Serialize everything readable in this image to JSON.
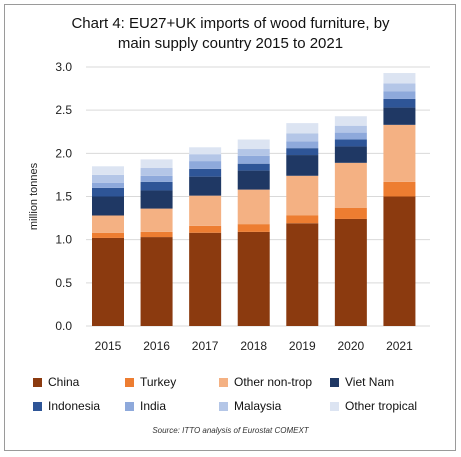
{
  "chart_data": {
    "type": "bar",
    "stacked": true,
    "title_lines": [
      "Chart 4: EU27+UK imports of wood furniture, by",
      "main supply country 2015 to 2021"
    ],
    "ylabel": "million tonnes",
    "xlabel": "",
    "ylim": [
      0,
      3.0
    ],
    "yticks": [
      "0.0",
      "0.5",
      "1.0",
      "1.5",
      "2.0",
      "2.5",
      "3.0"
    ],
    "categories": [
      "2015",
      "2016",
      "2017",
      "2018",
      "2019",
      "2020",
      "2021"
    ],
    "series": [
      {
        "name": "China",
        "color": "#8B3A0F",
        "values": [
          1.02,
          1.03,
          1.08,
          1.09,
          1.19,
          1.24,
          1.5
        ]
      },
      {
        "name": "Turkey",
        "color": "#ED7D31",
        "values": [
          0.06,
          0.06,
          0.08,
          0.09,
          0.09,
          0.13,
          0.17
        ]
      },
      {
        "name": "Other non-trop",
        "color": "#F4B183",
        "values": [
          0.2,
          0.27,
          0.35,
          0.4,
          0.46,
          0.52,
          0.66
        ]
      },
      {
        "name": "Viet Nam",
        "color": "#1F3864",
        "values": [
          0.22,
          0.21,
          0.22,
          0.22,
          0.24,
          0.19,
          0.2
        ]
      },
      {
        "name": "Indonesia",
        "color": "#2E5597",
        "values": [
          0.1,
          0.1,
          0.09,
          0.08,
          0.08,
          0.08,
          0.1
        ]
      },
      {
        "name": "India",
        "color": "#8EA9DB",
        "values": [
          0.06,
          0.07,
          0.09,
          0.09,
          0.08,
          0.08,
          0.09
        ]
      },
      {
        "name": "Malaysia",
        "color": "#B4C6E7",
        "values": [
          0.09,
          0.09,
          0.08,
          0.08,
          0.09,
          0.08,
          0.09
        ]
      },
      {
        "name": "Other tropical",
        "color": "#DCE4F2",
        "values": [
          0.1,
          0.1,
          0.08,
          0.11,
          0.12,
          0.11,
          0.12
        ]
      }
    ],
    "legend_position": "bottom",
    "grid": true
  },
  "source": "Source: ITTO analysis of Eurostat COMEXT"
}
